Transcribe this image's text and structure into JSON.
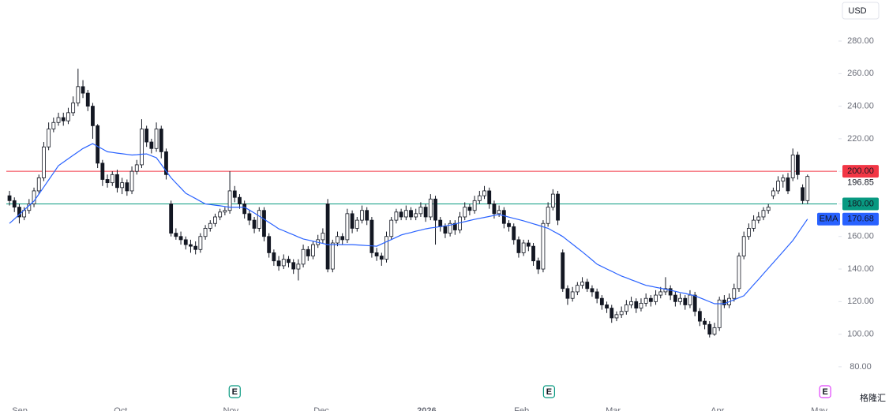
{
  "chart_data": {
    "type": "candlestick",
    "currency": "USD",
    "xlim": [
      -0.65,
      169
    ],
    "ylim": [
      69.3,
      305.2
    ],
    "yticks": [
      {
        "value": 80,
        "label": "80.00"
      },
      {
        "value": 100,
        "label": "100.00"
      },
      {
        "value": 120,
        "label": "120.00"
      },
      {
        "value": 140,
        "label": "140.00"
      },
      {
        "value": 160,
        "label": "160.00"
      },
      {
        "value": 180,
        "label": "180.00"
      },
      {
        "value": 200,
        "label": "200.00"
      },
      {
        "value": 220,
        "label": "220.00"
      },
      {
        "value": 240,
        "label": "240.00"
      },
      {
        "value": 260,
        "label": "260.00"
      },
      {
        "value": 280,
        "label": "280.00"
      }
    ],
    "xticks": [
      {
        "value": 2.1,
        "label": "Sep"
      },
      {
        "value": 22.7,
        "label": "Oct"
      },
      {
        "value": 45.2,
        "label": "Nov"
      },
      {
        "value": 63.7,
        "label": "Dec"
      },
      {
        "value": 85.2,
        "label": "2026"
      },
      {
        "value": 104.6,
        "label": "Feb"
      },
      {
        "value": 123.3,
        "label": "Mar"
      },
      {
        "value": 144.6,
        "label": "Apr"
      },
      {
        "value": 165.4,
        "label": "May"
      }
    ],
    "up_color": "#ffffff",
    "down_color": "#131722",
    "open": [
      185,
      182,
      178,
      172,
      176,
      180,
      188,
      196,
      215,
      226,
      230,
      233,
      231,
      236,
      242,
      252,
      248,
      240,
      228,
      205,
      195,
      193,
      198,
      190,
      193,
      188,
      200,
      204,
      226,
      218,
      214,
      226,
      212,
      180,
      162,
      160,
      158,
      155,
      154,
      152,
      160,
      165,
      168,
      172,
      175,
      176,
      188,
      184,
      180,
      174,
      170,
      165,
      176,
      160,
      150,
      145,
      142,
      146,
      144,
      140,
      143,
      152,
      148,
      155,
      158,
      180,
      140,
      156,
      160,
      158,
      174,
      165,
      170,
      176,
      170,
      150,
      148,
      146,
      160,
      170,
      175,
      172,
      176,
      172,
      174,
      178,
      172,
      183,
      170,
      166,
      162,
      168,
      164,
      172,
      178,
      176,
      182,
      185,
      188,
      180,
      174,
      176,
      168,
      166,
      158,
      150,
      156,
      154,
      145,
      140,
      168,
      178,
      186,
      150,
      128,
      122,
      126,
      130,
      132,
      128,
      126,
      122,
      118,
      116,
      110,
      112,
      114,
      118,
      120,
      116,
      119,
      122,
      120,
      124,
      126,
      128,
      124,
      120,
      122,
      118,
      124,
      114,
      108,
      106,
      100,
      104,
      121,
      118,
      122,
      128,
      148,
      160,
      165,
      170,
      172,
      176,
      185,
      188,
      194,
      196,
      196,
      210,
      190,
      182
    ],
    "high": [
      188,
      184,
      180,
      178,
      183,
      190,
      198,
      218,
      230,
      233,
      236,
      236,
      239,
      246,
      263,
      256,
      250,
      242,
      229,
      207,
      198,
      200,
      201,
      196,
      195,
      203,
      207,
      232,
      228,
      220,
      230,
      228,
      214,
      182,
      165,
      163,
      160,
      158,
      157,
      162,
      167,
      170,
      174,
      177,
      178,
      200,
      191,
      186,
      182,
      176,
      172,
      178,
      178,
      162,
      152,
      148,
      149,
      148,
      146,
      146,
      155,
      154,
      157,
      161,
      165,
      183,
      158,
      163,
      162,
      177,
      176,
      172,
      179,
      178,
      172,
      153,
      150,
      163,
      172,
      177,
      177,
      179,
      178,
      177,
      181,
      180,
      186,
      185,
      172,
      168,
      170,
      170,
      175,
      181,
      180,
      185,
      188,
      191,
      190,
      182,
      179,
      178,
      170,
      168,
      160,
      158,
      158,
      156,
      147,
      170,
      181,
      189,
      188,
      152,
      130,
      129,
      132,
      135,
      134,
      130,
      128,
      124,
      120,
      118,
      114,
      117,
      121,
      123,
      122,
      122,
      125,
      124,
      127,
      129,
      135,
      130,
      126,
      125,
      124,
      127,
      126,
      116,
      110,
      108,
      107,
      123,
      124,
      125,
      131,
      150,
      163,
      168,
      173,
      175,
      178,
      180,
      190,
      197,
      198,
      199,
      214,
      212,
      192,
      198
    ],
    "low": [
      179,
      175,
      168,
      170,
      174,
      178,
      186,
      194,
      213,
      224,
      228,
      228,
      229,
      234,
      240,
      245,
      237,
      220,
      202,
      191,
      190,
      191,
      187,
      186,
      185,
      186,
      198,
      202,
      215,
      211,
      212,
      208,
      195,
      160,
      158,
      155,
      152,
      150,
      149,
      150,
      158,
      163,
      166,
      170,
      173,
      174,
      181,
      177,
      171,
      167,
      162,
      163,
      157,
      147,
      142,
      139,
      140,
      141,
      137,
      133,
      141,
      145,
      146,
      153,
      156,
      138,
      138,
      154,
      155,
      156,
      162,
      163,
      168,
      167,
      147,
      145,
      142,
      144,
      158,
      168,
      170,
      170,
      170,
      170,
      172,
      169,
      170,
      155,
      163,
      159,
      160,
      161,
      162,
      170,
      173,
      174,
      180,
      183,
      177,
      171,
      172,
      165,
      163,
      155,
      147,
      148,
      151,
      142,
      137,
      138,
      166,
      176,
      167,
      126,
      118,
      120,
      124,
      128,
      126,
      123,
      119,
      115,
      113,
      107,
      108,
      110,
      112,
      116,
      113,
      114,
      117,
      117,
      118,
      122,
      124,
      121,
      117,
      118,
      115,
      116,
      111,
      105,
      103,
      98,
      99,
      102,
      116,
      116,
      120,
      126,
      146,
      158,
      163,
      168,
      170,
      174,
      183,
      186,
      190,
      186,
      194,
      195,
      180,
      180
    ],
    "close": [
      182,
      178,
      172,
      176,
      180,
      188,
      196,
      215,
      226,
      230,
      233,
      231,
      236,
      242,
      252,
      248,
      240,
      228,
      205,
      195,
      193,
      198,
      190,
      193,
      188,
      200,
      204,
      226,
      218,
      214,
      226,
      212,
      198,
      162,
      160,
      158,
      155,
      154,
      152,
      160,
      165,
      168,
      172,
      175,
      176,
      188,
      184,
      180,
      174,
      170,
      165,
      176,
      160,
      150,
      145,
      142,
      146,
      144,
      140,
      143,
      152,
      148,
      155,
      158,
      162,
      140,
      156,
      160,
      158,
      174,
      165,
      170,
      176,
      170,
      150,
      148,
      146,
      160,
      170,
      175,
      172,
      176,
      172,
      174,
      178,
      172,
      183,
      170,
      166,
      162,
      168,
      164,
      172,
      178,
      176,
      182,
      185,
      188,
      180,
      174,
      176,
      168,
      166,
      158,
      150,
      156,
      154,
      145,
      140,
      168,
      178,
      186,
      170,
      128,
      122,
      126,
      130,
      132,
      128,
      126,
      122,
      118,
      116,
      110,
      112,
      114,
      118,
      120,
      116,
      119,
      122,
      120,
      124,
      126,
      128,
      124,
      120,
      122,
      118,
      124,
      114,
      108,
      106,
      100,
      104,
      121,
      118,
      122,
      128,
      148,
      160,
      165,
      170,
      172,
      176,
      178,
      188,
      194,
      196,
      188,
      210,
      198,
      182,
      196.85
    ],
    "ema": {
      "name": "EMA",
      "color": "#2962ff",
      "values": [
        168,
        170.7,
        173.5,
        176.2,
        179,
        181.7,
        186,
        190.3,
        194.7,
        199,
        203.5,
        205.6,
        207.7,
        209.8,
        211.9,
        214,
        215.5,
        217,
        215.3,
        213.7,
        212,
        211.6,
        211.2,
        210.8,
        210.4,
        210,
        210.2,
        210.5,
        210.7,
        209.5,
        208.3,
        204.2,
        200.1,
        196,
        192.8,
        189.7,
        186.5,
        184.9,
        183.3,
        181.6,
        180,
        179.6,
        179.2,
        178.8,
        178.4,
        178,
        178,
        178,
        178,
        176.2,
        174.4,
        172.5,
        170.6,
        168.6,
        166.7,
        164.7,
        163.5,
        162.2,
        161,
        159.7,
        158.5,
        157.8,
        157.1,
        156.4,
        155.7,
        155,
        155,
        155,
        155,
        155,
        155,
        154.8,
        154.6,
        154.4,
        154.2,
        154,
        155.4,
        156.8,
        158.1,
        159.5,
        160.9,
        161.7,
        162.4,
        163.2,
        163.9,
        164.7,
        165.2,
        165.6,
        166.1,
        166.5,
        167,
        167.7,
        168.4,
        169.1,
        169.8,
        170.5,
        171.1,
        171.7,
        172.3,
        172.9,
        173.5,
        172.7,
        171.9,
        171.1,
        170.4,
        169.6,
        168.7,
        167.8,
        166.9,
        165.9,
        165,
        163.3,
        161.7,
        160,
        157.6,
        155.3,
        152.9,
        150.6,
        148.1,
        145.6,
        143,
        141.5,
        140,
        138.6,
        137.1,
        135.7,
        134.6,
        133.4,
        132.3,
        131.1,
        130,
        129.4,
        128.8,
        128.2,
        127.6,
        127,
        126.3,
        125.6,
        125,
        124.3,
        123.6,
        122.4,
        121.2,
        119.9,
        118.7,
        118.7,
        118.7,
        119.9,
        121.2,
        122.4,
        123.6,
        127,
        130.4,
        133.7,
        137.1,
        140.5,
        143.9,
        147.3,
        150.7,
        154.1,
        157.5,
        161.9,
        166.3,
        170.68
      ]
    },
    "price_lines": [
      {
        "value": 200,
        "label": "200.00",
        "color": "#f23645"
      },
      {
        "value": 180,
        "label": "180.00",
        "color": "#089981"
      }
    ],
    "earnings": {
      "label": "E",
      "x": [
        46,
        110.2,
        166.6
      ],
      "colors": [
        "#089981",
        "#089981",
        "#e040fb"
      ]
    },
    "watermark": "格隆汇"
  }
}
